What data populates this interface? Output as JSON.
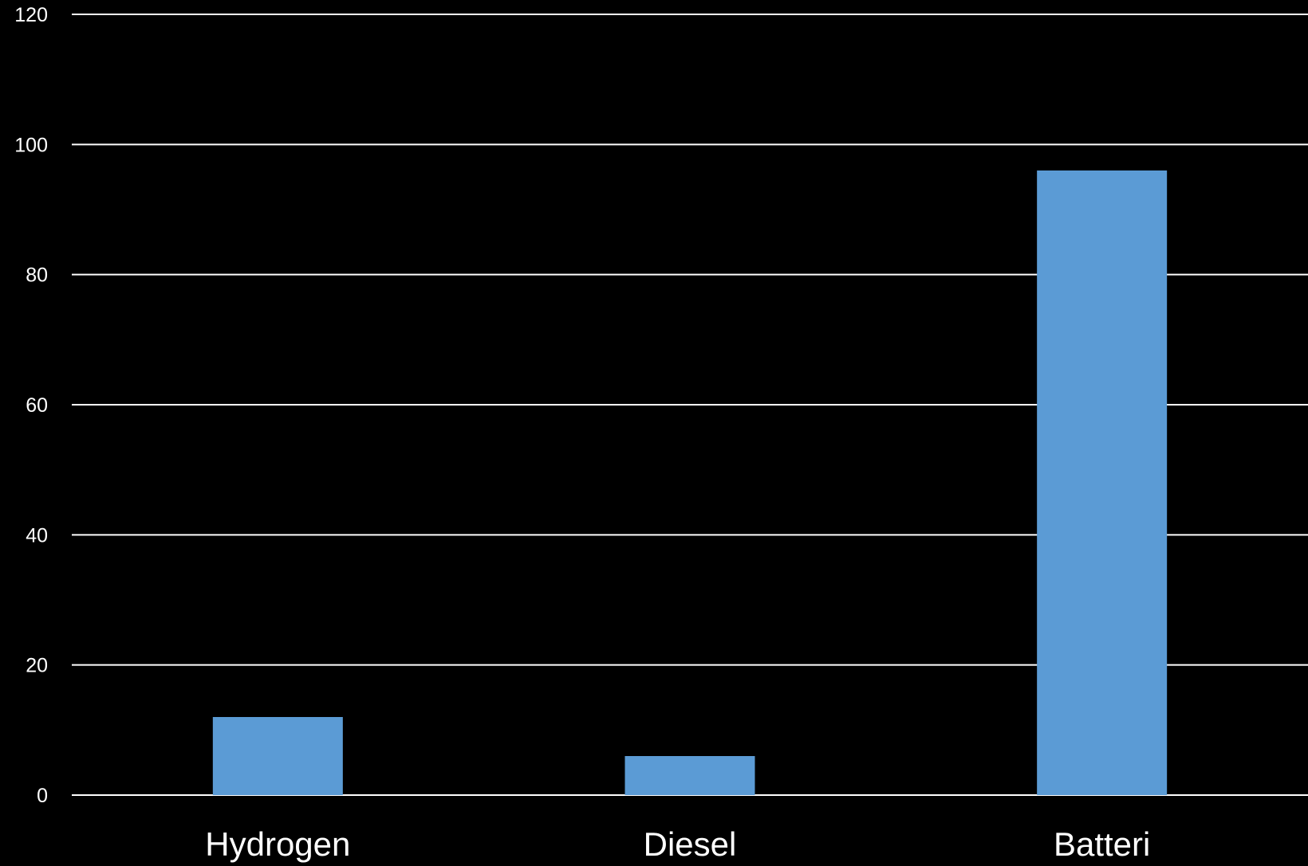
{
  "chart_data": {
    "type": "bar",
    "categories": [
      "Hydrogen",
      "Diesel",
      "Batteri"
    ],
    "values": [
      12,
      6,
      96
    ],
    "ylim": [
      0,
      120
    ],
    "yticks": [
      0,
      20,
      40,
      60,
      80,
      100,
      120
    ],
    "grid": true,
    "legend": "none",
    "title": "",
    "xlabel": "",
    "ylabel": ""
  },
  "colors": {
    "background": "#000000",
    "bar": "#5b9bd5",
    "grid": "#ffffff",
    "text": "#ffffff"
  }
}
